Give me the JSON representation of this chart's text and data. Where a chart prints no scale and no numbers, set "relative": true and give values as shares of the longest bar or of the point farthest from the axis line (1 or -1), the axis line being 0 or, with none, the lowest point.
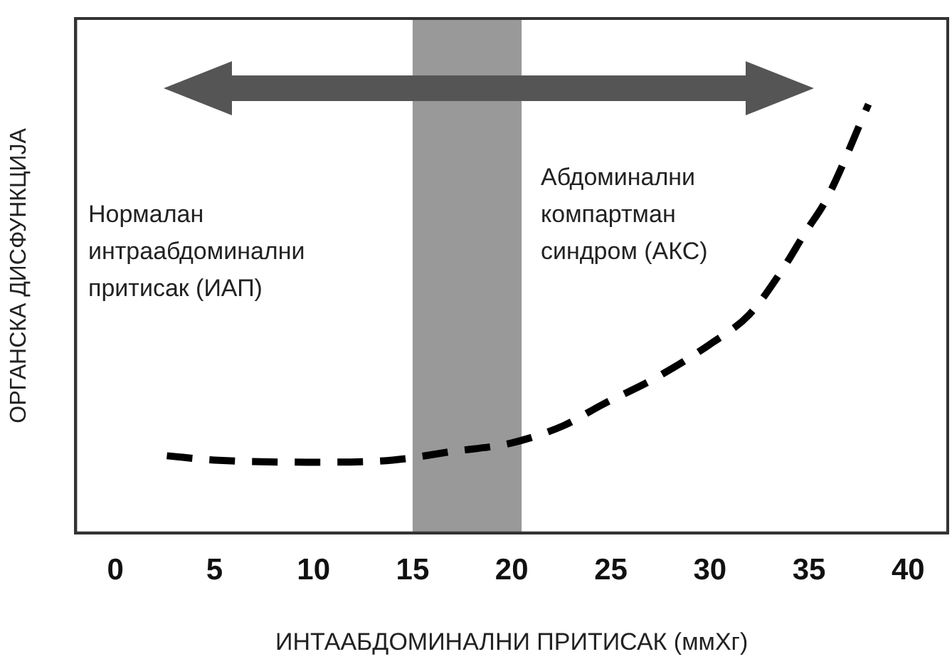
{
  "chart_data": {
    "type": "line",
    "xlabel": "ИНТААБДОМИНАЛНИ ПРИТИСАК (ммХг)",
    "ylabel": "ОРГАНСКА ДИСФУНКЦИЈА",
    "relative": true,
    "x": [
      2.6,
      5,
      10,
      14,
      17,
      20,
      22.6,
      24.6,
      27.2,
      30,
      32,
      33.6,
      34.8,
      35.9,
      38
    ],
    "series": [
      {
        "color": "#000000",
        "values": [
          0.18,
          0.17,
          0.165,
          0.17,
          0.19,
          0.21,
          0.25,
          0.3,
          0.36,
          0.44,
          0.51,
          0.61,
          0.7,
          0.78,
          1
        ]
      }
    ],
    "xlim": [
      -2,
      42
    ],
    "xticks": [
      0,
      5,
      10,
      15,
      20,
      25,
      30,
      35,
      40
    ],
    "bands": [
      {
        "axis": "x",
        "from": 15,
        "to": 20.5,
        "color": "#999999"
      }
    ],
    "annotations": [
      "Нормалан интраабдоминални притисак (ИАП)",
      "Абдоминални компартман синдром (АКС)"
    ],
    "grid": false,
    "legend": false,
    "marker": "none",
    "line_style": "dashed"
  }
}
